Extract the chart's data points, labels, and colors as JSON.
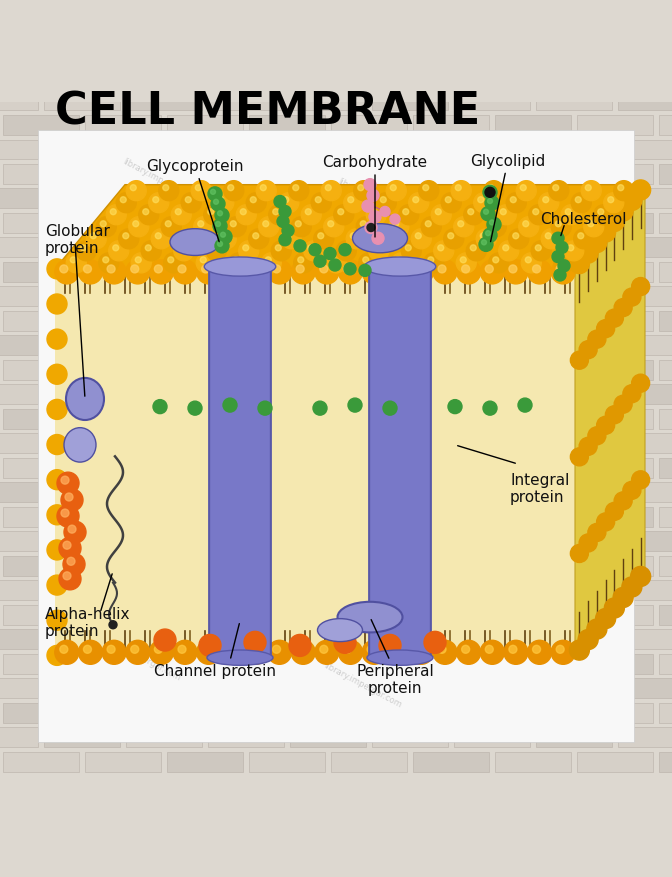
{
  "title": "CELL MEMBRANE",
  "bg_brick_light": "#ddd8d0",
  "bg_brick_dark": "#c8c0b8",
  "bg_mortar": "#b8b0a8",
  "panel_color": "#f8f8f8",
  "labels": {
    "glycoprotein": "Glycoprotein",
    "carbohydrate": "Carbohydrate",
    "glycolipid": "Glycolipid",
    "globular_protein": "Globular\nprotein",
    "cholesterol": "Cholesterol",
    "alpha_helix": "Alpha-helix\nprotein",
    "channel_protein": "Channel protein",
    "peripheral_protein": "Peripheral\nprotein",
    "integral_protein": "Integral\nprotein"
  },
  "colors": {
    "head_yellow": "#f5a800",
    "head_orange": "#e07800",
    "head_outline": "#c07000",
    "tail_dark": "#3a2800",
    "tail_gold": "#c89010",
    "membrane_top_fill": "#f0c030",
    "membrane_interior": "#f5e8b0",
    "membrane_interior_dark": "#e8d890",
    "front_face_cream": "#f8f0c8",
    "protein_blue": "#7878c8",
    "protein_blue_dark": "#5858a8",
    "protein_blue_light": "#9898d8",
    "green_bead": "#3a9a3a",
    "green_bead_dark": "#207020",
    "orange_bead": "#e86010",
    "orange_bead_dark": "#c04008",
    "pink_bead": "#e890b0",
    "pink_bead_dark": "#c06080",
    "cholesterol_color": "#d8b840",
    "black_bead": "#202020",
    "label_color": "#111111",
    "watermark": "#aaaaaa"
  },
  "watermark": "library.impergar.com"
}
